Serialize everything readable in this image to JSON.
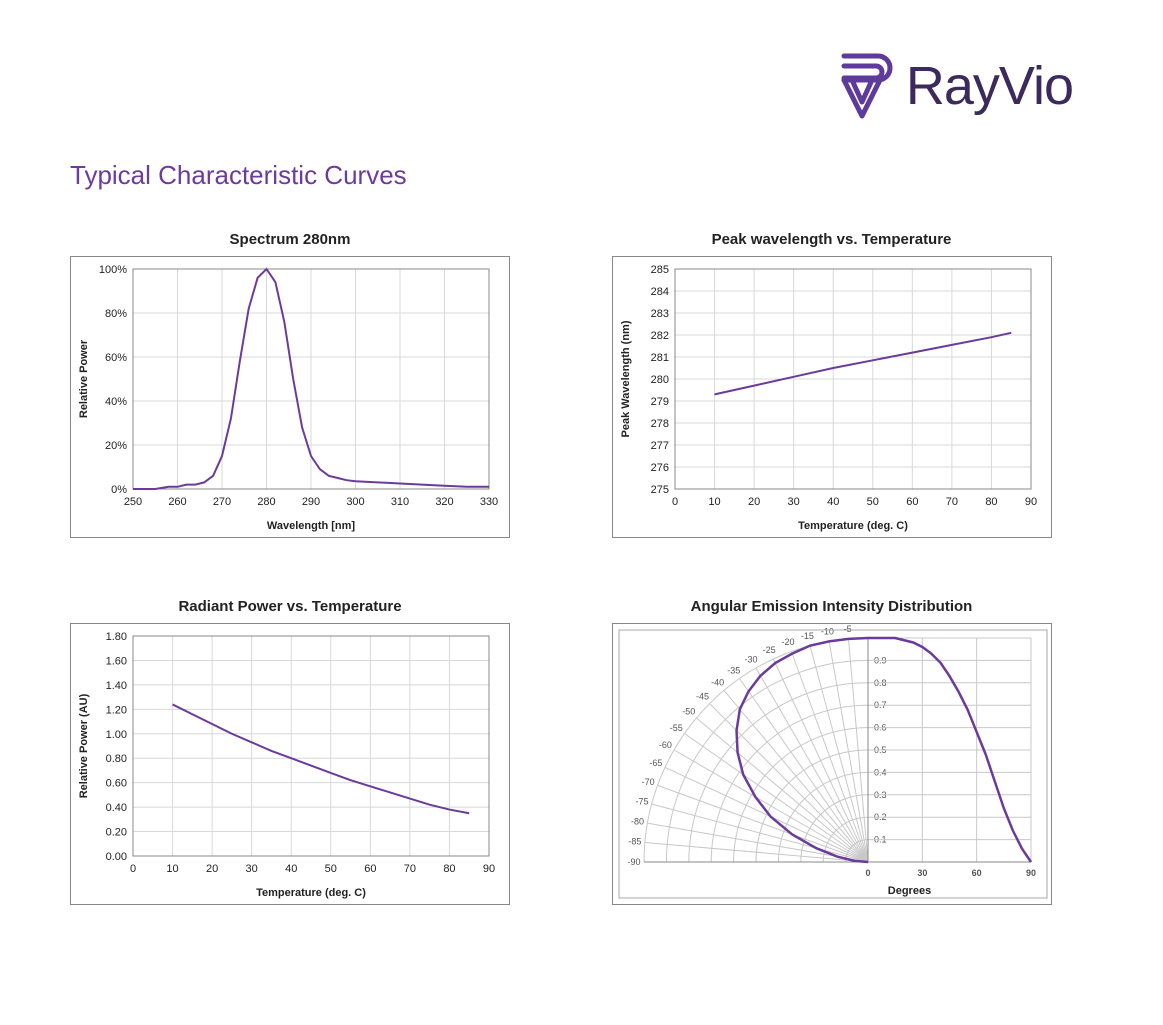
{
  "brand": {
    "name": "RayVio",
    "logo_color": "#5d3a9b",
    "text_color": "#3d2a5c"
  },
  "section_title": "Typical Characteristic Curves",
  "title_color": "#6b3b9e",
  "chart1": {
    "type": "line",
    "title": "Spectrum 280nm",
    "xlabel": "Wavelength [nm]",
    "ylabel": "Relative Power",
    "xlim": [
      250,
      330
    ],
    "xtick_step": 10,
    "ylim": [
      0,
      1.0
    ],
    "ytick_step": 0.2,
    "ytick_format": "percent",
    "line_color": "#6b3b9b",
    "line_width": 2,
    "grid_color": "#d8d8d8",
    "data": [
      [
        250,
        0.0
      ],
      [
        255,
        0.0
      ],
      [
        258,
        0.01
      ],
      [
        260,
        0.01
      ],
      [
        262,
        0.02
      ],
      [
        264,
        0.02
      ],
      [
        266,
        0.03
      ],
      [
        268,
        0.06
      ],
      [
        270,
        0.15
      ],
      [
        272,
        0.32
      ],
      [
        274,
        0.58
      ],
      [
        276,
        0.82
      ],
      [
        278,
        0.96
      ],
      [
        280,
        1.0
      ],
      [
        282,
        0.94
      ],
      [
        284,
        0.76
      ],
      [
        286,
        0.5
      ],
      [
        288,
        0.28
      ],
      [
        290,
        0.15
      ],
      [
        292,
        0.09
      ],
      [
        294,
        0.06
      ],
      [
        296,
        0.05
      ],
      [
        298,
        0.04
      ],
      [
        300,
        0.035
      ],
      [
        305,
        0.03
      ],
      [
        310,
        0.025
      ],
      [
        315,
        0.02
      ],
      [
        320,
        0.015
      ],
      [
        325,
        0.01
      ],
      [
        330,
        0.01
      ]
    ]
  },
  "chart2": {
    "type": "line",
    "title": "Peak wavelength vs. Temperature",
    "xlabel": "Temperature (deg. C)",
    "ylabel": "Peak Wavelength (nm)",
    "xlim": [
      0,
      90
    ],
    "xtick_step": 10,
    "ylim": [
      275,
      285
    ],
    "ytick_step": 1,
    "line_color": "#6b3b9b",
    "line_width": 2,
    "grid_color": "#d8d8d8",
    "data": [
      [
        10,
        279.3
      ],
      [
        20,
        279.7
      ],
      [
        30,
        280.1
      ],
      [
        40,
        280.5
      ],
      [
        50,
        280.85
      ],
      [
        60,
        281.2
      ],
      [
        70,
        281.55
      ],
      [
        80,
        281.9
      ],
      [
        85,
        282.1
      ]
    ]
  },
  "chart3": {
    "type": "line",
    "title": "Radiant Power vs. Temperature",
    "xlabel": "Temperature (deg. C)",
    "ylabel": "Relative Power (AU)",
    "xlim": [
      0,
      90
    ],
    "xtick_step": 10,
    "ylim": [
      0,
      1.8
    ],
    "ytick_step": 0.2,
    "ytick_format": "2dec",
    "line_color": "#6b3b9b",
    "line_width": 2,
    "grid_color": "#d8d8d8",
    "data": [
      [
        10,
        1.24
      ],
      [
        15,
        1.16
      ],
      [
        20,
        1.08
      ],
      [
        25,
        1.0
      ],
      [
        30,
        0.93
      ],
      [
        35,
        0.86
      ],
      [
        40,
        0.8
      ],
      [
        45,
        0.74
      ],
      [
        50,
        0.68
      ],
      [
        55,
        0.62
      ],
      [
        60,
        0.57
      ],
      [
        65,
        0.52
      ],
      [
        70,
        0.47
      ],
      [
        75,
        0.42
      ],
      [
        80,
        0.38
      ],
      [
        85,
        0.35
      ]
    ]
  },
  "chart4": {
    "type": "polar-cartesian",
    "title": "Angular Emission Intensity Distribution",
    "xlabel": "Degrees",
    "polar_angle_labels": [
      -5,
      -10,
      -15,
      -20,
      -25,
      -30,
      -35,
      -40,
      -45,
      -50,
      -55,
      -60,
      -65,
      -70,
      -75,
      -80,
      -85,
      -90
    ],
    "radial_labels": [
      0.1,
      0.2,
      0.3,
      0.4,
      0.5,
      0.6,
      0.7,
      0.8,
      0.9
    ],
    "right_xticks": [
      0,
      30,
      60,
      90
    ],
    "line_color": "#6b3b9b",
    "line_width": 2.5,
    "grid_color": "#c8c8c8",
    "data_polar": [
      [
        -90,
        0.0
      ],
      [
        -85,
        0.06
      ],
      [
        -80,
        0.14
      ],
      [
        -75,
        0.24
      ],
      [
        -70,
        0.36
      ],
      [
        -65,
        0.48
      ],
      [
        -60,
        0.58
      ],
      [
        -55,
        0.68
      ],
      [
        -50,
        0.76
      ],
      [
        -45,
        0.83
      ],
      [
        -40,
        0.89
      ],
      [
        -35,
        0.93
      ],
      [
        -30,
        0.96
      ],
      [
        -25,
        0.98
      ],
      [
        -20,
        0.99
      ],
      [
        -15,
        1.0
      ],
      [
        -10,
        1.0
      ],
      [
        -5,
        1.0
      ],
      [
        0,
        1.0
      ]
    ],
    "data_cartesian": [
      [
        0,
        1.0
      ],
      [
        5,
        1.0
      ],
      [
        10,
        1.0
      ],
      [
        15,
        1.0
      ],
      [
        20,
        0.99
      ],
      [
        25,
        0.98
      ],
      [
        30,
        0.96
      ],
      [
        35,
        0.93
      ],
      [
        40,
        0.89
      ],
      [
        45,
        0.83
      ],
      [
        50,
        0.76
      ],
      [
        55,
        0.68
      ],
      [
        60,
        0.58
      ],
      [
        65,
        0.48
      ],
      [
        70,
        0.36
      ],
      [
        75,
        0.24
      ],
      [
        80,
        0.14
      ],
      [
        85,
        0.06
      ],
      [
        90,
        0.0
      ]
    ]
  }
}
